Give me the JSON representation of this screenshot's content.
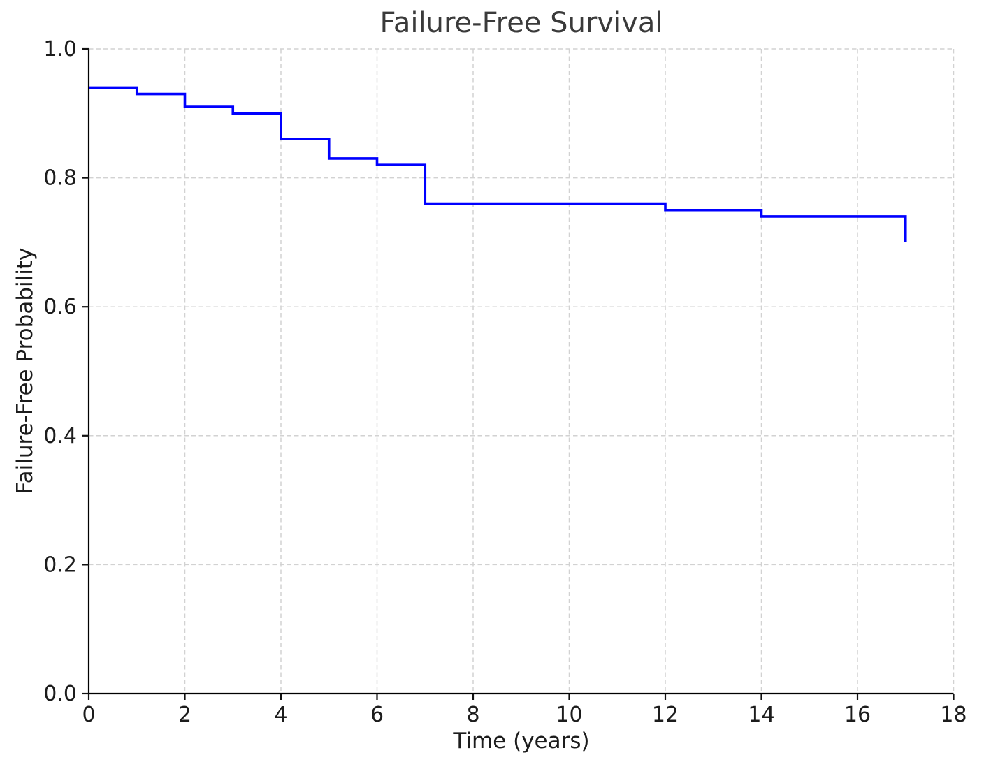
{
  "figure": {
    "title": "Failure-Free Survival",
    "xlabel": "Time (years)",
    "ylabel": "Failure-Free Probability"
  },
  "chart_data": {
    "type": "line",
    "subtype": "step-post-survival",
    "title": "Failure-Free Survival",
    "xlabel": "Time (years)",
    "ylabel": "Failure-Free Probability",
    "xlim": [
      0,
      18
    ],
    "ylim": [
      0.0,
      1.0
    ],
    "x_ticks": [
      0,
      2,
      4,
      6,
      8,
      10,
      12,
      14,
      16,
      18
    ],
    "x_tick_labels": [
      "0",
      "2",
      "4",
      "6",
      "8",
      "10",
      "12",
      "14",
      "16",
      "18"
    ],
    "y_ticks": [
      0.0,
      0.2,
      0.4,
      0.6,
      0.8,
      1.0
    ],
    "y_tick_labels": [
      "0.0",
      "0.2",
      "0.4",
      "0.6",
      "0.8",
      "1.0"
    ],
    "grid": true,
    "grid_style": "dashed",
    "legend": false,
    "series": [
      {
        "name": "Failure-Free Survival",
        "points": [
          [
            0,
            0.94
          ],
          [
            1,
            0.93
          ],
          [
            2,
            0.91
          ],
          [
            3,
            0.9
          ],
          [
            4,
            0.86
          ],
          [
            5,
            0.83
          ],
          [
            6,
            0.82
          ],
          [
            7,
            0.76
          ],
          [
            12,
            0.75
          ],
          [
            14,
            0.74
          ],
          [
            17,
            0.7
          ]
        ]
      }
    ],
    "colors": {
      "line": "#0000ff",
      "grid": "#d2d2d2",
      "spine": "#000000",
      "tick": "#111111",
      "tick_label": "#1c1c1c",
      "title": "#3a3a3a",
      "axis_label": "#1c1c1c",
      "background": "#ffffff"
    }
  }
}
